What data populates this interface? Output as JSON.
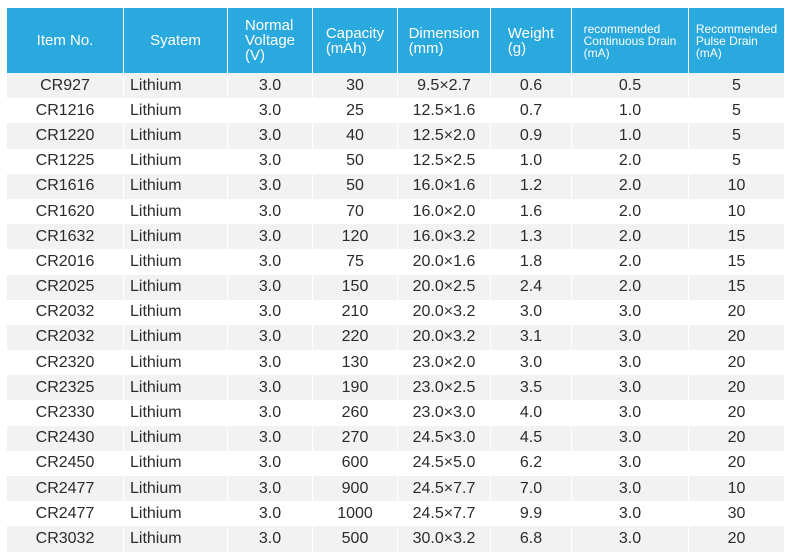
{
  "headers": [
    "Item No.",
    "Syatem",
    "Normal\nVoltage\n(V)",
    "Capacity\n(mAh)",
    "Dimension\n(mm)",
    "Weight\n(g)",
    "recommended\nContinuous Drain\n(mA)",
    "Recommended\nPulse Drain\n(mA)"
  ],
  "rows": [
    [
      "CR927",
      "Lithium",
      "3.0",
      "30",
      "9.5×2.7",
      "0.6",
      "0.5",
      "5"
    ],
    [
      "CR1216",
      "Lithium",
      "3.0",
      "25",
      "12.5×1.6",
      "0.7",
      "1.0",
      "5"
    ],
    [
      "CR1220",
      "Lithium",
      "3.0",
      "40",
      "12.5×2.0",
      "0.9",
      "1.0",
      "5"
    ],
    [
      "CR1225",
      "Lithium",
      "3.0",
      "50",
      "12.5×2.5",
      "1.0",
      "2.0",
      "5"
    ],
    [
      "CR1616",
      "Lithium",
      "3.0",
      "50",
      "16.0×1.6",
      "1.2",
      "2.0",
      "10"
    ],
    [
      "CR1620",
      "Lithium",
      "3.0",
      "70",
      "16.0×2.0",
      "1.6",
      "2.0",
      "10"
    ],
    [
      "CR1632",
      "Lithium",
      "3.0",
      "120",
      "16.0×3.2",
      "1.3",
      "2.0",
      "15"
    ],
    [
      "CR2016",
      "Lithium",
      "3.0",
      "75",
      "20.0×1.6",
      "1.8",
      "2.0",
      "15"
    ],
    [
      "CR2025",
      "Lithium",
      "3.0",
      "150",
      "20.0×2.5",
      "2.4",
      "2.0",
      "15"
    ],
    [
      "CR2032",
      "Lithium",
      "3.0",
      "210",
      "20.0×3.2",
      "3.0",
      "3.0",
      "20"
    ],
    [
      "CR2032",
      "Lithium",
      "3.0",
      "220",
      "20.0×3.2",
      "3.1",
      "3.0",
      "20"
    ],
    [
      "CR2320",
      "Lithium",
      "3.0",
      "130",
      "23.0×2.0",
      "3.0",
      "3.0",
      "20"
    ],
    [
      "CR2325",
      "Lithium",
      "3.0",
      "190",
      "23.0×2.5",
      "3.5",
      "3.0",
      "20"
    ],
    [
      "CR2330",
      "Lithium",
      "3.0",
      "260",
      "23.0×3.0",
      "4.0",
      "3.0",
      "20"
    ],
    [
      "CR2430",
      "Lithium",
      "3.0",
      "270",
      "24.5×3.0",
      "4.5",
      "3.0",
      "20"
    ],
    [
      "CR2450",
      "Lithium",
      "3.0",
      "600",
      "24.5×5.0",
      "6.2",
      "3.0",
      "20"
    ],
    [
      "CR2477",
      "Lithium",
      "3.0",
      "900",
      "24.5×7.7",
      "7.0",
      "3.0",
      "10"
    ],
    [
      "CR2477",
      "Lithium",
      "3.0",
      "1000",
      "24.5×7.7",
      "9.9",
      "3.0",
      "30"
    ],
    [
      "CR3032",
      "Lithium",
      "3.0",
      "500",
      "30.0×3.2",
      "6.8",
      "3.0",
      "20"
    ]
  ]
}
